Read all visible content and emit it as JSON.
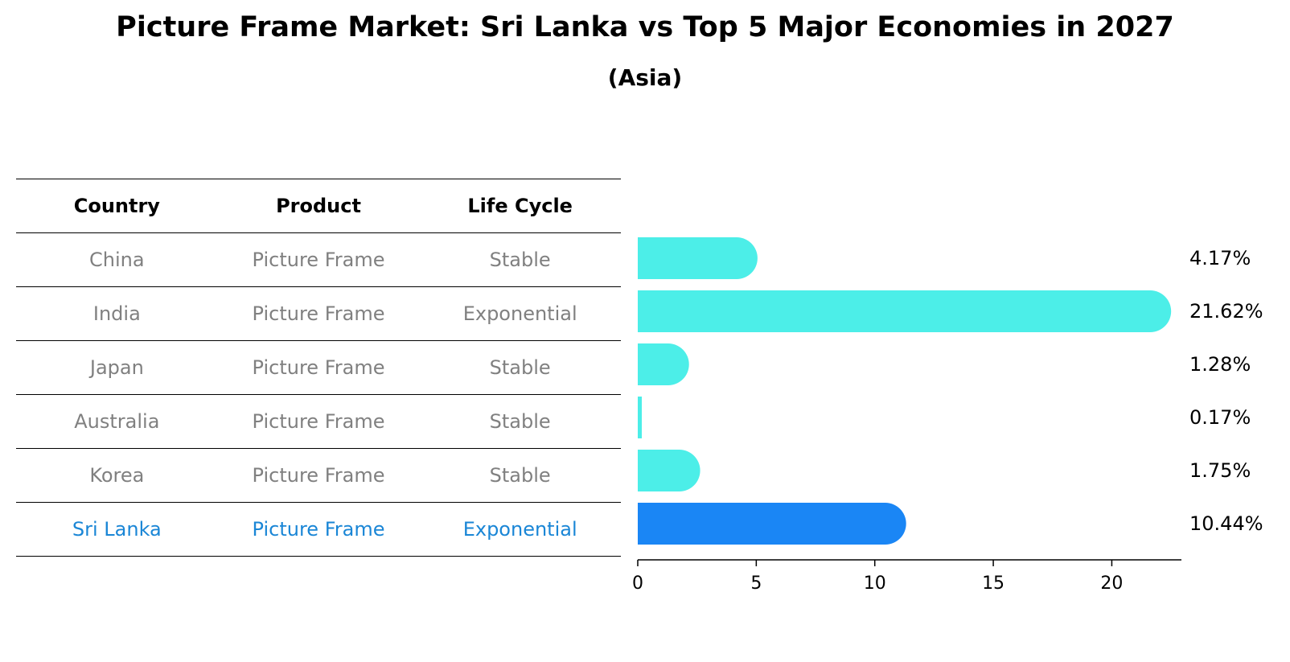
{
  "title": "Picture Frame Market: Sri Lanka vs Top 5 Major Economies in 2027",
  "subtitle": "(Asia)",
  "table": {
    "headers": [
      "Country",
      "Product",
      "Life Cycle"
    ],
    "rows": [
      [
        "China",
        "Picture Frame",
        "Stable"
      ],
      [
        "India",
        "Picture Frame",
        "Exponential"
      ],
      [
        "Japan",
        "Picture Frame",
        "Stable"
      ],
      [
        "Australia",
        "Picture Frame",
        "Stable"
      ],
      [
        "Korea",
        "Picture Frame",
        "Stable"
      ],
      [
        "Sri Lanka",
        "Picture Frame",
        "Exponential"
      ]
    ],
    "highlight_row": "Sri Lanka"
  },
  "colors": {
    "bar": "#4ceee8",
    "highlight_bar": "#1a86f5",
    "highlight_text": "#1a86d6",
    "muted_text": "#808080"
  },
  "chart_data": {
    "type": "bar",
    "orientation": "horizontal",
    "categories": [
      "China",
      "India",
      "Japan",
      "Australia",
      "Korea",
      "Sri Lanka"
    ],
    "values": [
      4.17,
      21.62,
      1.28,
      0.17,
      1.75,
      10.44
    ],
    "value_labels": [
      "4.17%",
      "21.62%",
      "1.28%",
      "0.17%",
      "1.75%",
      "10.44%"
    ],
    "xlim": [
      0,
      22.7
    ],
    "xticks": [
      0,
      5,
      10,
      15,
      20
    ],
    "highlight": "Sri Lanka",
    "grid": false
  }
}
